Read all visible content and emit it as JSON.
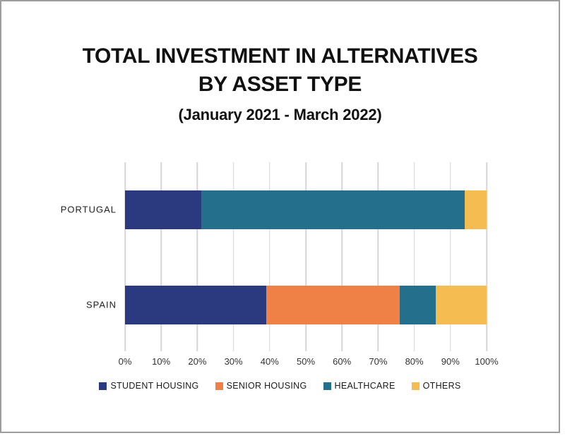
{
  "title": {
    "line1": "TOTAL INVESTMENT IN ALTERNATIVES",
    "line2": "BY ASSET TYPE",
    "subtitle": "(January 2021 - March 2022)"
  },
  "chart_data": {
    "type": "bar",
    "orientation": "horizontal",
    "stacked": true,
    "title": "TOTAL INVESTMENT IN ALTERNATIVES BY ASSET TYPE",
    "subtitle": "(January 2021 - March 2022)",
    "categories": [
      "PORTUGAL",
      "SPAIN"
    ],
    "series": [
      {
        "name": "STUDENT HOUSING",
        "color": "#2b3a7e",
        "values": [
          21,
          39
        ]
      },
      {
        "name": "SENIOR HOUSING",
        "color": "#ef8046",
        "values": [
          0,
          37
        ]
      },
      {
        "name": "HEALTHCARE",
        "color": "#24708c",
        "values": [
          73,
          10
        ]
      },
      {
        "name": "OTHERS",
        "color": "#f5bd51",
        "values": [
          6,
          14
        ]
      }
    ],
    "x_ticks": [
      "0%",
      "10%",
      "20%",
      "30%",
      "40%",
      "50%",
      "60%",
      "70%",
      "80%",
      "90%",
      "100%"
    ],
    "xlim": [
      0,
      100
    ],
    "unit": "%",
    "grid": "vertical",
    "legend_position": "bottom"
  },
  "colors": {
    "grid": "#d6d6d6",
    "frame_border": "#9e9e9e",
    "background": "#ffffff",
    "text": "#111111"
  }
}
